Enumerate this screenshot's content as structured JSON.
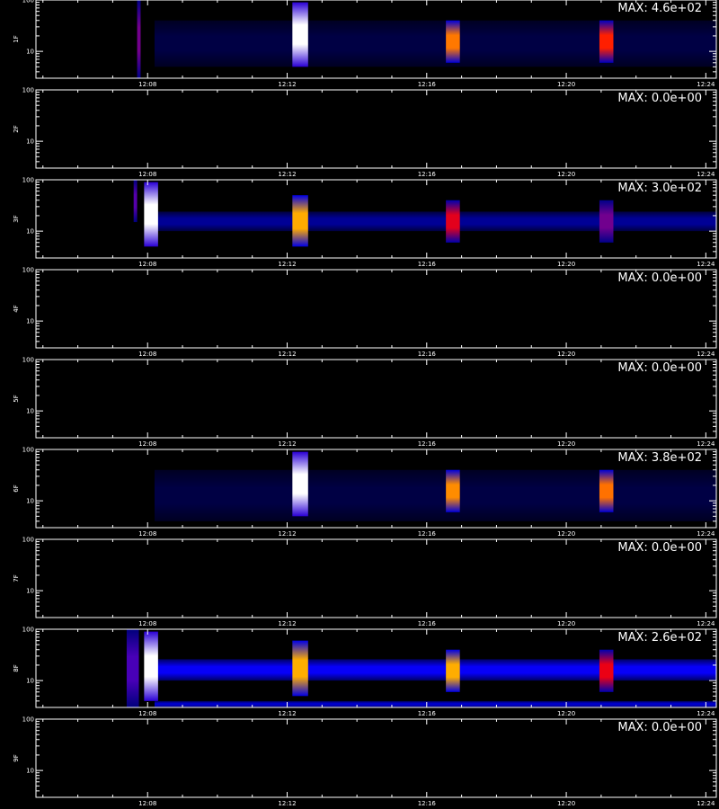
{
  "ylim": [
    3,
    100
  ],
  "yticks": [
    100,
    10
  ],
  "yminor_ticks": [
    4,
    5,
    6,
    7,
    8,
    9,
    20,
    30,
    40,
    50,
    60,
    70,
    80,
    90
  ],
  "xlim": [
    4.8,
    24.3
  ],
  "xticks": [
    {
      "value": 8,
      "label": "12:08"
    },
    {
      "value": 12,
      "label": "12:12"
    },
    {
      "value": 16,
      "label": "12:16"
    },
    {
      "value": 20,
      "label": "12:20"
    },
    {
      "value": 24,
      "label": "12:24"
    }
  ],
  "xminor_ticks": [
    5,
    6,
    7,
    9,
    10,
    11,
    13,
    14,
    15,
    17,
    18,
    19,
    21,
    22,
    23
  ],
  "panels": [
    {
      "label": "1F",
      "max_label": "MAX: 4.6e+02",
      "max": 460,
      "events": [
        {
          "x": [
            7.7,
            7.8
          ],
          "y": [
            3,
            100
          ],
          "v": 200
        },
        {
          "x": [
            8.2,
            24.3
          ],
          "y": [
            11,
            26
          ],
          "v": 110
        },
        {
          "x": [
            8.2,
            24.3
          ],
          "y": [
            5,
            40
          ],
          "v": 30
        },
        {
          "x": [
            12.15,
            12.6
          ],
          "y": [
            5,
            90
          ],
          "v": 460
        },
        {
          "x": [
            16.55,
            16.95
          ],
          "y": [
            6,
            40
          ],
          "v": 330
        },
        {
          "x": [
            20.95,
            21.35
          ],
          "y": [
            6,
            40
          ],
          "v": 290
        }
      ]
    },
    {
      "label": "2F",
      "max_label": "MAX: 0.0e+00",
      "max": 0,
      "events": []
    },
    {
      "label": "3F",
      "max_label": "MAX: 3.0e+02",
      "max": 300,
      "events": [
        {
          "x": [
            7.6,
            7.7
          ],
          "y": [
            15,
            100
          ],
          "v": 120
        },
        {
          "x": [
            8.2,
            24.3
          ],
          "y": [
            10,
            24
          ],
          "v": 50
        },
        {
          "x": [
            7.9,
            8.3
          ],
          "y": [
            5,
            90
          ],
          "v": 300
        },
        {
          "x": [
            12.15,
            12.6
          ],
          "y": [
            5,
            50
          ],
          "v": 230
        },
        {
          "x": [
            16.55,
            16.95
          ],
          "y": [
            6,
            40
          ],
          "v": 170
        },
        {
          "x": [
            20.95,
            21.35
          ],
          "y": [
            6,
            40
          ],
          "v": 130
        }
      ]
    },
    {
      "label": "4F",
      "max_label": "MAX: 0.0e+00",
      "max": 0,
      "events": []
    },
    {
      "label": "5F",
      "max_label": "MAX: 0.0e+00",
      "max": 0,
      "events": []
    },
    {
      "label": "6F",
      "max_label": "MAX: 3.8e+02",
      "max": 380,
      "events": [
        {
          "x": [
            8.2,
            24.3
          ],
          "y": [
            11,
            26
          ],
          "v": 100
        },
        {
          "x": [
            8.2,
            24.3
          ],
          "y": [
            4,
            40
          ],
          "v": 25
        },
        {
          "x": [
            12.15,
            12.6
          ],
          "y": [
            5,
            90
          ],
          "v": 380
        },
        {
          "x": [
            16.55,
            16.95
          ],
          "y": [
            6,
            40
          ],
          "v": 280
        },
        {
          "x": [
            20.95,
            21.35
          ],
          "y": [
            6,
            40
          ],
          "v": 270
        }
      ]
    },
    {
      "label": "7F",
      "max_label": "MAX: 0.0e+00",
      "max": 0,
      "events": []
    },
    {
      "label": "8F",
      "max_label": "MAX: 2.6e+02",
      "max": 260,
      "events": [
        {
          "x": [
            7.4,
            7.75
          ],
          "y": [
            3,
            100
          ],
          "v": 100
        },
        {
          "x": [
            8.2,
            24.3
          ],
          "y": [
            10,
            26
          ],
          "v": 80
        },
        {
          "x": [
            8.2,
            24.3
          ],
          "y": [
            3,
            4
          ],
          "v": 60
        },
        {
          "x": [
            7.9,
            8.3
          ],
          "y": [
            4,
            90
          ],
          "v": 260
        },
        {
          "x": [
            12.15,
            12.6
          ],
          "y": [
            5,
            60
          ],
          "v": 200
        },
        {
          "x": [
            16.55,
            16.95
          ],
          "y": [
            6,
            40
          ],
          "v": 200
        },
        {
          "x": [
            20.95,
            21.35
          ],
          "y": [
            6,
            40
          ],
          "v": 150
        }
      ]
    },
    {
      "label": "9F",
      "max_label": "MAX: 0.0e+00",
      "max": 0,
      "events": []
    }
  ]
}
